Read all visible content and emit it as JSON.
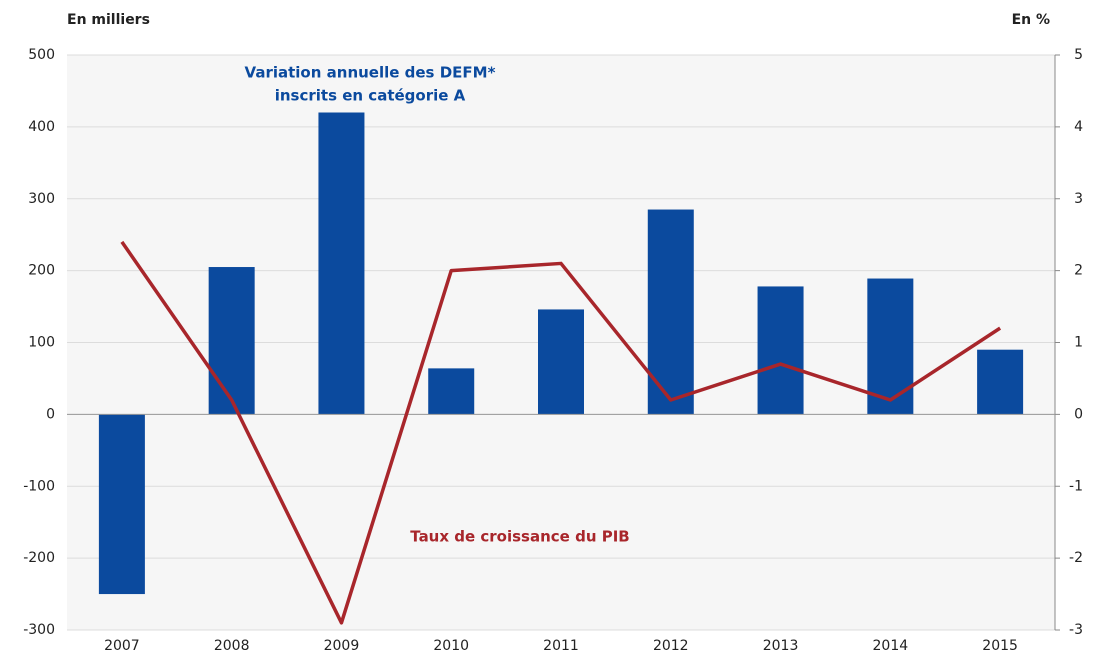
{
  "chart_data": {
    "type": "bar_line",
    "y_label": "En milliers",
    "y2_label": "En %",
    "categories": [
      "2007",
      "2008",
      "2009",
      "2010",
      "2011",
      "2012",
      "2013",
      "2014",
      "2015"
    ],
    "series": [
      {
        "name": [
          "Variation annuelle des DEFM*",
          "inscrits en catégorie A"
        ],
        "type": "bar",
        "color": "#0b4a9e",
        "values": [
          -250,
          205,
          420,
          64,
          146,
          285,
          178,
          189,
          90
        ]
      },
      {
        "name": [
          "Taux de croissance du PIB"
        ],
        "type": "line",
        "axis": "y2",
        "color": "#a8262b",
        "values": [
          2.4,
          0.2,
          -2.9,
          2.0,
          2.1,
          0.2,
          0.7,
          0.2,
          1.2
        ]
      }
    ],
    "ylim": [
      -300,
      500
    ],
    "yticks": [
      -300,
      -200,
      -100,
      0,
      100,
      200,
      300,
      400,
      500
    ],
    "y2lim": [
      -3,
      5
    ],
    "y2ticks": [
      -3,
      -2,
      -1,
      0,
      1,
      2,
      3,
      4,
      5
    ],
    "grid": true
  }
}
